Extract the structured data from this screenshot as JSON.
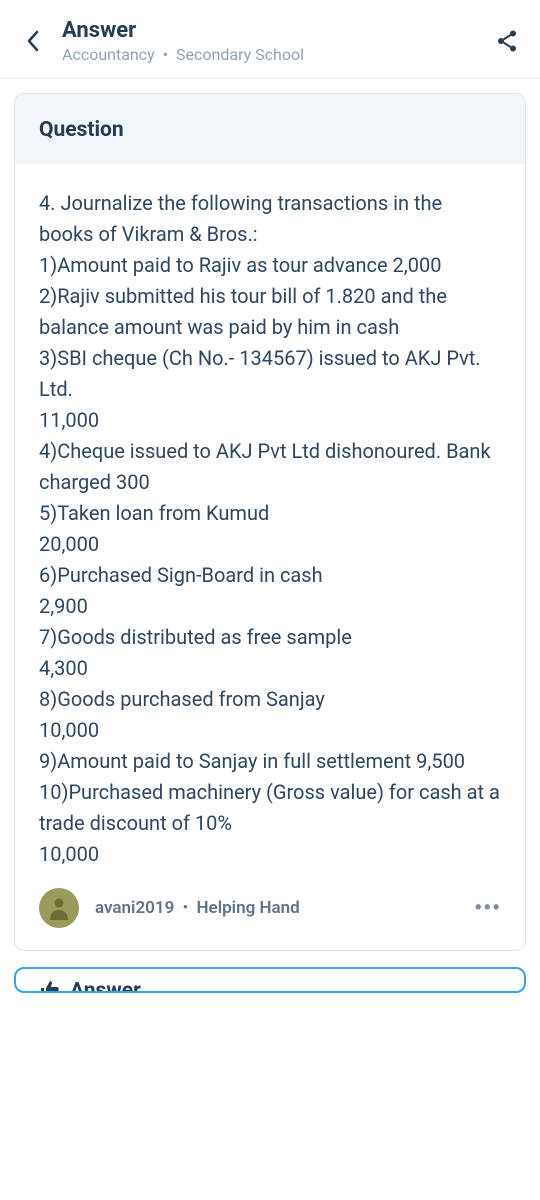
{
  "header": {
    "title": "Answer",
    "subject": "Accountancy",
    "level": "Secondary School"
  },
  "question": {
    "label": "Question",
    "lines": [
      "4. Journalize the following transactions in the books of Vikram & Bros.:",
      "1)Amount paid to Rajiv as tour advance 2,000",
      "2)Rajiv submitted his tour bill of 1.820 and the balance amount was paid by him in cash",
      "3)SBI cheque (Ch No.- 134567) issued to AKJ Pvt. Ltd.",
      "11,000",
      "4)Cheque issued to AKJ Pvt Ltd dishonoured. Bank charged 300",
      "5)Taken loan from Kumud",
      "20,000",
      "6)Purchased Sign-Board in cash",
      "2,900",
      "7)Goods distributed as free sample",
      "4,300",
      "8)Goods purchased from Sanjay",
      "10,000",
      "9)Amount paid to Sanjay in full settlement 9,500",
      "10)Purchased machinery (Gross value) for cash at a trade discount of 10%",
      "10,000"
    ]
  },
  "user": {
    "name": "avani2019",
    "rank": "Helping Hand"
  },
  "answerPeek": {
    "label": "Answer"
  },
  "colors": {
    "text_primary": "#273b52",
    "text_muted": "#8fa3b6",
    "card_border": "#dbe4ee",
    "banner_bg": "#f1f6fa",
    "answer_border": "#3aa2e3",
    "avatar_bg": "#9a9a5b"
  }
}
